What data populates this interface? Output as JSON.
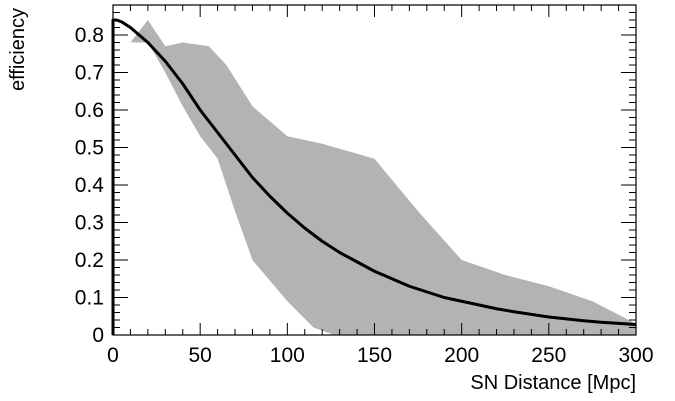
{
  "chart_data": {
    "type": "line",
    "title": "",
    "xlabel": "SN Distance [Mpc]",
    "ylabel": "efficiency",
    "xlim": [
      0,
      300
    ],
    "ylim": [
      0,
      0.88
    ],
    "grid": false,
    "x_ticks": [
      0,
      50,
      100,
      150,
      200,
      250,
      300
    ],
    "y_ticks": [
      0,
      0.1,
      0.2,
      0.3,
      0.4,
      0.5,
      0.6,
      0.7,
      0.8
    ],
    "x_tick_labels": [
      "0",
      "50",
      "100",
      "150",
      "200",
      "250",
      "300"
    ],
    "y_tick_labels": [
      "0",
      "0.1",
      "0.2",
      "0.3",
      "0.4",
      "0.5",
      "0.6",
      "0.7",
      "0.8"
    ],
    "colors": {
      "curve": "#000000",
      "band": "#b3b3b3",
      "frame": "#000000"
    },
    "series": [
      {
        "values_x": [
          0,
          2,
          5,
          10,
          15,
          20,
          25,
          30,
          35,
          40,
          45,
          50,
          55,
          60,
          65,
          70,
          75,
          80,
          90,
          100,
          110,
          120,
          130,
          140,
          150,
          160,
          170,
          180,
          190,
          200,
          210,
          220,
          230,
          240,
          250,
          260,
          270,
          280,
          290,
          300
        ],
        "values_y": [
          0.84,
          0.84,
          0.835,
          0.82,
          0.8,
          0.78,
          0.755,
          0.73,
          0.7,
          0.67,
          0.635,
          0.6,
          0.57,
          0.54,
          0.51,
          0.48,
          0.45,
          0.42,
          0.37,
          0.325,
          0.285,
          0.25,
          0.22,
          0.195,
          0.17,
          0.15,
          0.13,
          0.115,
          0.1,
          0.09,
          0.08,
          0.07,
          0.062,
          0.055,
          0.048,
          0.043,
          0.038,
          0.034,
          0.031,
          0.028
        ]
      }
    ],
    "band": {
      "upper": {
        "x": [
          10,
          20,
          30,
          40,
          55,
          65,
          80,
          100,
          120,
          150,
          175,
          200,
          225,
          250,
          275,
          300
        ],
        "y": [
          0.78,
          0.84,
          0.77,
          0.78,
          0.77,
          0.72,
          0.61,
          0.53,
          0.51,
          0.47,
          0.33,
          0.2,
          0.16,
          0.13,
          0.09,
          0.03
        ]
      },
      "lower": {
        "x": [
          10,
          20,
          30,
          40,
          50,
          60,
          70,
          80,
          100,
          115,
          127,
          150,
          200,
          250,
          300
        ],
        "y": [
          0.78,
          0.78,
          0.7,
          0.61,
          0.53,
          0.47,
          0.33,
          0.2,
          0.09,
          0.02,
          0.0,
          0.0,
          0.0,
          0.0,
          0.0
        ]
      }
    }
  }
}
